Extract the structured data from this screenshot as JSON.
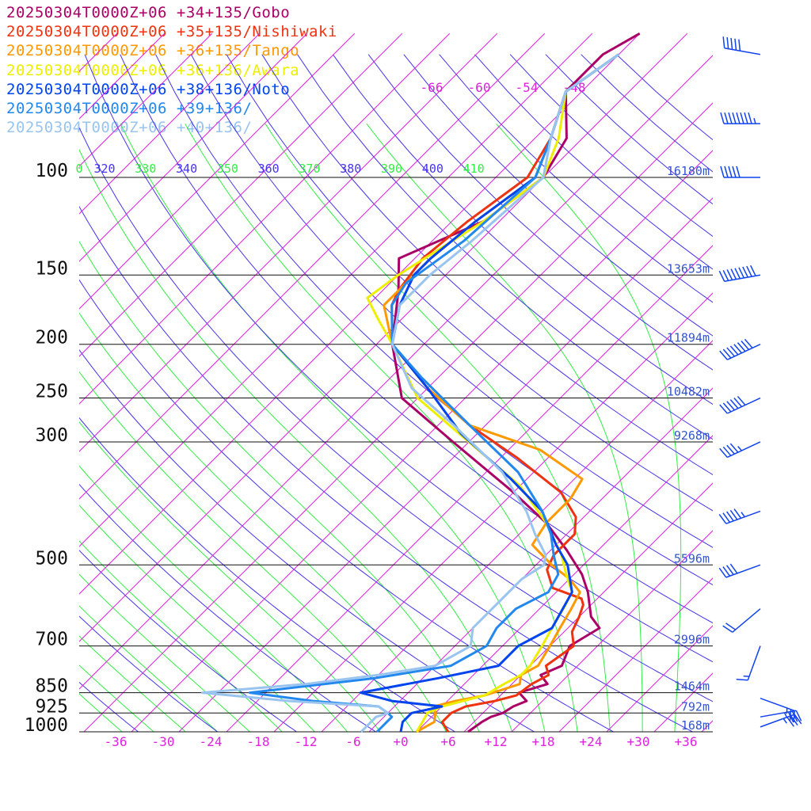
{
  "chart_data": {
    "type": "line",
    "title": "",
    "xlabel": "",
    "ylabel": "",
    "x_axis": {
      "ticks": [
        "-36",
        "-30",
        "-24",
        "-18",
        "-12",
        "-6",
        "+0",
        "+6",
        "+12",
        "+18",
        "+24",
        "+30",
        "+36"
      ],
      "unit": "°C"
    },
    "pressure_levels": [
      {
        "p": 100,
        "label": "100",
        "height": "16180m"
      },
      {
        "p": 150,
        "label": "150",
        "height": "13653m"
      },
      {
        "p": 200,
        "label": "200",
        "height": "11894m"
      },
      {
        "p": 250,
        "label": "250",
        "height": "10482m"
      },
      {
        "p": 300,
        "label": "300",
        "height": "9268m"
      },
      {
        "p": 500,
        "label": "500",
        "height": "5596m"
      },
      {
        "p": 700,
        "label": "700",
        "height": "2996m"
      },
      {
        "p": 850,
        "label": "850",
        "height": "1464m"
      },
      {
        "p": 925,
        "label": "925",
        "height": "792m"
      },
      {
        "p": 1000,
        "label": "1000",
        "height": "168m"
      }
    ],
    "theta_labels": [
      "0",
      "320",
      "330",
      "340",
      "350",
      "360",
      "370",
      "380",
      "390",
      "400",
      "410"
    ],
    "mixing_labels": [
      "-66",
      "-60",
      "-54",
      "-48"
    ],
    "series": [
      {
        "name": "20250304T0000Z+06 +34+135/Gobo",
        "color": "#aa0066",
        "points": [
          [
            8.5,
            1000
          ],
          [
            9,
            960
          ],
          [
            9.5,
            940
          ],
          [
            10.5,
            925
          ],
          [
            11,
            900
          ],
          [
            12,
            880
          ],
          [
            10,
            850
          ],
          [
            12.5,
            820
          ],
          [
            10.5,
            790
          ],
          [
            12,
            760
          ],
          [
            10.5,
            700
          ],
          [
            12,
            650
          ],
          [
            9.5,
            620
          ],
          [
            6,
            560
          ],
          [
            3,
            520
          ],
          [
            -2,
            470
          ],
          [
            -8,
            420
          ],
          [
            -16,
            370
          ],
          [
            -30,
            300
          ],
          [
            -42,
            250
          ],
          [
            -50,
            200
          ],
          [
            -56,
            160
          ],
          [
            -60,
            140
          ],
          [
            -54,
            120
          ],
          [
            -52,
            100
          ],
          [
            -54,
            85
          ],
          [
            -60,
            70
          ],
          [
            -60,
            60
          ],
          [
            -58,
            55
          ]
        ]
      },
      {
        "name": "20250304T0000Z+06 +35+135/Nishiwaki",
        "color": "#ee3311",
        "points": [
          [
            6,
            1000
          ],
          [
            4,
            960
          ],
          [
            4,
            925
          ],
          [
            5,
            900
          ],
          [
            8,
            880
          ],
          [
            10,
            860
          ],
          [
            10.5,
            820
          ],
          [
            11.5,
            790
          ],
          [
            10,
            760
          ],
          [
            11,
            700
          ],
          [
            9,
            660
          ],
          [
            8,
            620
          ],
          [
            7,
            590
          ],
          [
            6,
            575
          ],
          [
            1,
            550
          ],
          [
            -2,
            510
          ],
          [
            -3,
            480
          ],
          [
            -3,
            440
          ],
          [
            -5,
            410
          ],
          [
            -10,
            370
          ],
          [
            -20,
            320
          ],
          [
            -30,
            280
          ],
          [
            -40,
            240
          ],
          [
            -50,
            200
          ],
          [
            -55,
            170
          ],
          [
            -56,
            160
          ],
          [
            -57,
            140
          ],
          [
            -56,
            120
          ],
          [
            -54,
            100
          ],
          [
            -56,
            85
          ],
          [
            -60,
            70
          ],
          [
            -58,
            60
          ]
        ]
      },
      {
        "name": "20250304T0000Z+06 +36+135/Tango",
        "color": "#ff9900",
        "points": [
          [
            2,
            1000
          ],
          [
            3,
            960
          ],
          [
            2,
            925
          ],
          [
            1,
            900
          ],
          [
            3,
            880
          ],
          [
            6,
            860
          ],
          [
            9,
            820
          ],
          [
            8,
            790
          ],
          [
            9,
            760
          ],
          [
            8,
            700
          ],
          [
            7,
            650
          ],
          [
            6,
            600
          ],
          [
            5,
            560
          ],
          [
            2,
            530
          ],
          [
            -2,
            500
          ],
          [
            -7,
            460
          ],
          [
            -8,
            420
          ],
          [
            -8,
            380
          ],
          [
            -9,
            350
          ],
          [
            -18,
            310
          ],
          [
            -30,
            280
          ],
          [
            -40,
            240
          ],
          [
            -50,
            200
          ],
          [
            -56,
            170
          ],
          [
            -56,
            160
          ],
          [
            -56,
            140
          ],
          [
            -55,
            120
          ],
          [
            -53,
            100
          ],
          [
            -56,
            85
          ],
          [
            -60,
            70
          ],
          [
            -58,
            60
          ]
        ]
      },
      {
        "name": "20250304T0000Z+06 +36+136/Awara",
        "color": "#eeee00",
        "points": [
          [
            2,
            1000
          ],
          [
            1.5,
            960
          ],
          [
            1,
            925
          ],
          [
            2,
            900
          ],
          [
            4,
            880
          ],
          [
            6,
            860
          ],
          [
            7,
            820
          ],
          [
            8,
            790
          ],
          [
            8,
            760
          ],
          [
            7,
            700
          ],
          [
            6,
            650
          ],
          [
            5,
            600
          ],
          [
            4,
            560
          ],
          [
            1,
            520
          ],
          [
            -2,
            480
          ],
          [
            -8,
            420
          ],
          [
            -16,
            360
          ],
          [
            -28,
            300
          ],
          [
            -40,
            250
          ],
          [
            -50,
            200
          ],
          [
            -55,
            180
          ],
          [
            -59,
            165
          ],
          [
            -58,
            150
          ],
          [
            -54,
            120
          ],
          [
            -52,
            100
          ],
          [
            -55,
            85
          ],
          [
            -60,
            70
          ],
          [
            -58,
            60
          ]
        ]
      },
      {
        "name": "20250304T0000Z+06 +38+136/Noto",
        "color": "#0044ee",
        "points": [
          [
            0,
            1000
          ],
          [
            -1,
            960
          ],
          [
            -1,
            940
          ],
          [
            -1,
            925
          ],
          [
            2,
            900
          ],
          [
            -5,
            880
          ],
          [
            -10,
            850
          ],
          [
            -2,
            800
          ],
          [
            4,
            760
          ],
          [
            4,
            700
          ],
          [
            6,
            650
          ],
          [
            4,
            560
          ],
          [
            0,
            500
          ],
          [
            -4,
            460
          ],
          [
            -10,
            400
          ],
          [
            -18,
            350
          ],
          [
            -30,
            290
          ],
          [
            -40,
            240
          ],
          [
            -50,
            200
          ],
          [
            -54,
            170
          ],
          [
            -56,
            150
          ],
          [
            -56,
            140
          ],
          [
            -55,
            120
          ],
          [
            -53,
            100
          ],
          [
            -56,
            85
          ],
          [
            -60,
            70
          ],
          [
            -58,
            60
          ]
        ]
      },
      {
        "name": "20250304T0000Z+06 +39+136/",
        "color": "#2288ee",
        "points": [
          [
            -3,
            1000
          ],
          [
            -3,
            960
          ],
          [
            -3,
            940
          ],
          [
            -4,
            925
          ],
          [
            -6,
            900
          ],
          [
            -15,
            880
          ],
          [
            -24,
            850
          ],
          [
            -10,
            800
          ],
          [
            -2,
            760
          ],
          [
            0,
            700
          ],
          [
            -1,
            650
          ],
          [
            -1,
            600
          ],
          [
            1,
            560
          ],
          [
            0,
            520
          ],
          [
            -3,
            480
          ],
          [
            -6,
            440
          ],
          [
            -10,
            400
          ],
          [
            -18,
            340
          ],
          [
            -30,
            280
          ],
          [
            -42,
            230
          ],
          [
            -50,
            200
          ],
          [
            -55,
            170
          ],
          [
            -56,
            155
          ],
          [
            -54,
            130
          ],
          [
            -53,
            100
          ],
          [
            -56,
            85
          ],
          [
            -60,
            70
          ],
          [
            -58,
            60
          ]
        ]
      },
      {
        "name": "20250304T0000Z+06 +40+136/",
        "color": "#99c4f0",
        "points": [
          [
            -5,
            1000
          ],
          [
            -5,
            960
          ],
          [
            -5,
            940
          ],
          [
            -4,
            925
          ],
          [
            -6,
            900
          ],
          [
            -18,
            880
          ],
          [
            -30,
            850
          ],
          [
            -18,
            820
          ],
          [
            -10,
            790
          ],
          [
            -4,
            760
          ],
          [
            -2,
            700
          ],
          [
            -4,
            650
          ],
          [
            -4,
            580
          ],
          [
            -4,
            530
          ],
          [
            -3,
            500
          ],
          [
            -4,
            480
          ],
          [
            -8,
            440
          ],
          [
            -12,
            400
          ],
          [
            -20,
            340
          ],
          [
            -32,
            280
          ],
          [
            -42,
            240
          ],
          [
            -50,
            200
          ],
          [
            -54,
            170
          ],
          [
            -54,
            150
          ],
          [
            -53,
            130
          ],
          [
            -52,
            100
          ],
          [
            -56,
            85
          ],
          [
            -60,
            70
          ],
          [
            -58,
            60
          ]
        ]
      }
    ],
    "wind_barbs": [
      {
        "p": 60,
        "dir": 280,
        "speed": 50
      },
      {
        "p": 80,
        "dir": 270,
        "speed": 85
      },
      {
        "p": 100,
        "dir": 270,
        "speed": 50
      },
      {
        "p": 150,
        "dir": 260,
        "speed": 90
      },
      {
        "p": 200,
        "dir": 245,
        "speed": 80
      },
      {
        "p": 250,
        "dir": 245,
        "speed": 60
      },
      {
        "p": 300,
        "dir": 245,
        "speed": 45
      },
      {
        "p": 400,
        "dir": 250,
        "speed": 55
      },
      {
        "p": 500,
        "dir": 250,
        "speed": 40
      },
      {
        "p": 600,
        "dir": 230,
        "speed": 20
      },
      {
        "p": 700,
        "dir": 200,
        "speed": 15
      },
      {
        "p": 870,
        "dir": 110,
        "speed": 25
      },
      {
        "p": 940,
        "dir": 80,
        "speed": 35
      },
      {
        "p": 980,
        "dir": 70,
        "speed": 35
      }
    ]
  },
  "colors": {
    "isobar": "#111111",
    "isotherm": "#dd22dd",
    "dry_adiabat": "#4433ee",
    "moist_adiabat": "#33ee44",
    "height_label": "#3355cc",
    "wind_barb": "#1144ee"
  }
}
